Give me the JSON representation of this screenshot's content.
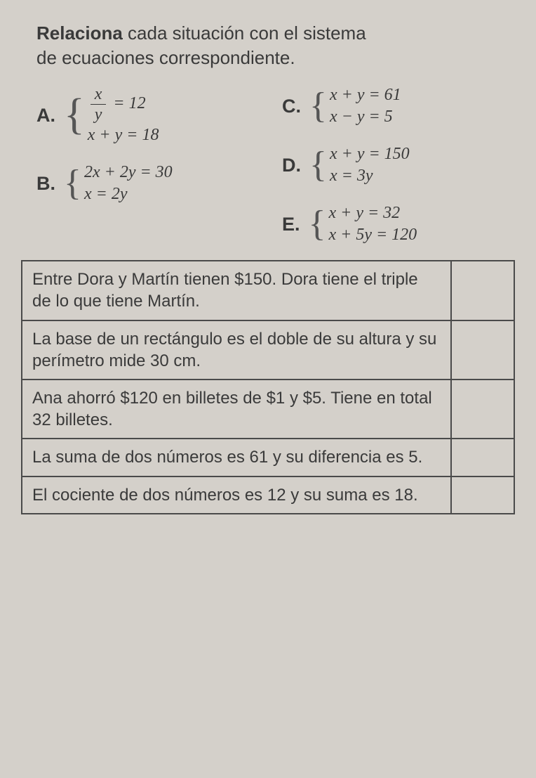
{
  "instruction": {
    "boldWord": "Relaciona",
    "restLine1": " cada situación con el sistema",
    "line2": "de ecuaciones correspondiente."
  },
  "options": {
    "A": {
      "label": "A.",
      "eq1_frac_num": "x",
      "eq1_frac_den": "y",
      "eq1_rhs": " = 12",
      "eq2": "x + y = 18"
    },
    "B": {
      "label": "B.",
      "eq1": "2x + 2y = 30",
      "eq2": "x = 2y"
    },
    "C": {
      "label": "C.",
      "eq1": "x + y = 61",
      "eq2": "x − y = 5"
    },
    "D": {
      "label": "D.",
      "eq1": "x + y = 150",
      "eq2": "x = 3y"
    },
    "E": {
      "label": "E.",
      "eq1": "x + y = 32",
      "eq2": "x + 5y = 120"
    }
  },
  "tableRows": [
    {
      "text": "Entre Dora y Martín tienen $150. Dora tiene el triple de lo que tiene Martín.",
      "answer": ""
    },
    {
      "text": "La base de un rectángulo es el doble de su altura y su perímetro mide 30 cm.",
      "answer": ""
    },
    {
      "text": "Ana ahorró $120 en billetes de $1 y $5. Tiene en total 32 billetes.",
      "answer": ""
    },
    {
      "text": "La suma de dos números es 61 y su diferencia es 5.",
      "answer": ""
    },
    {
      "text": "El cociente de dos números es 12 y su suma es 18.",
      "answer": ""
    }
  ]
}
